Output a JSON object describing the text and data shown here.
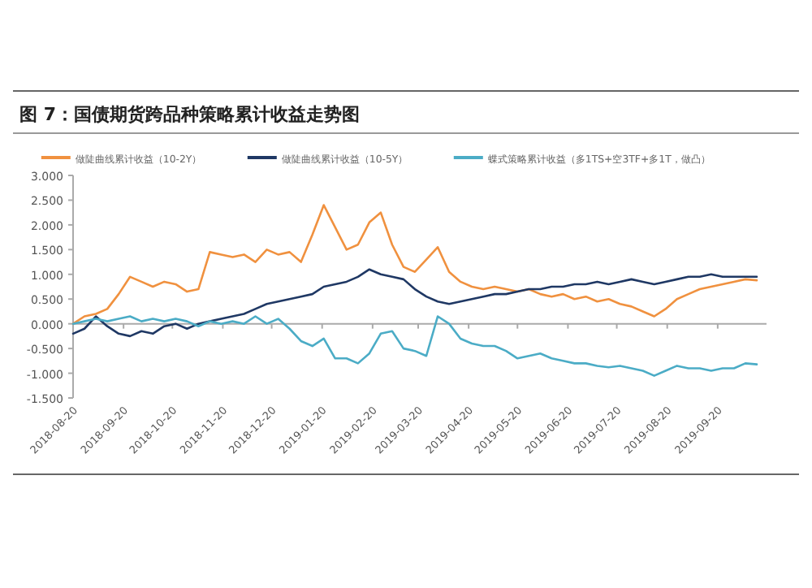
{
  "chart_data": {
    "type": "line",
    "title": "图 7：国债期货跨品种策略累计收益走势图",
    "x": [
      "2018-08-20",
      "2018-08-27",
      "2018-09-03",
      "2018-09-10",
      "2018-09-17",
      "2018-09-24",
      "2018-10-01",
      "2018-10-08",
      "2018-10-15",
      "2018-10-22",
      "2018-10-29",
      "2018-11-05",
      "2018-11-12",
      "2018-11-19",
      "2018-11-26",
      "2018-12-03",
      "2018-12-10",
      "2018-12-17",
      "2018-12-24",
      "2018-12-31",
      "2019-01-07",
      "2019-01-14",
      "2019-01-21",
      "2019-01-28",
      "2019-02-04",
      "2019-02-11",
      "2019-02-18",
      "2019-02-25",
      "2019-03-04",
      "2019-03-11",
      "2019-03-18",
      "2019-03-25",
      "2019-04-01",
      "2019-04-08",
      "2019-04-15",
      "2019-04-22",
      "2019-04-29",
      "2019-05-06",
      "2019-05-13",
      "2019-05-20",
      "2019-05-27",
      "2019-06-03",
      "2019-06-10",
      "2019-06-17",
      "2019-06-24",
      "2019-07-01",
      "2019-07-08",
      "2019-07-15",
      "2019-07-22",
      "2019-07-29",
      "2019-08-05",
      "2019-08-12",
      "2019-08-19",
      "2019-08-26",
      "2019-09-02",
      "2019-09-09",
      "2019-09-16",
      "2019-09-23",
      "2019-09-30",
      "2019-10-07",
      "2019-10-14"
    ],
    "series": [
      {
        "name": "做陡曲线累计收益（10-2Y）",
        "color": "#f0913f",
        "values": [
          0.0,
          0.15,
          0.2,
          0.3,
          0.6,
          0.95,
          0.85,
          0.75,
          0.85,
          0.8,
          0.65,
          0.7,
          1.45,
          1.4,
          1.35,
          1.4,
          1.25,
          1.5,
          1.4,
          1.45,
          1.25,
          1.8,
          2.4,
          1.95,
          1.5,
          1.6,
          2.05,
          2.25,
          1.6,
          1.15,
          1.05,
          1.3,
          1.55,
          1.05,
          0.85,
          0.75,
          0.7,
          0.75,
          0.7,
          0.65,
          0.7,
          0.6,
          0.55,
          0.6,
          0.5,
          0.55,
          0.45,
          0.5,
          0.4,
          0.35,
          0.25,
          0.15,
          0.3,
          0.5,
          0.6,
          0.7,
          0.75,
          0.8,
          0.85,
          0.9,
          0.88
        ]
      },
      {
        "name": "做陡曲线累计收益（10-5Y）",
        "color": "#1f3864",
        "values": [
          -0.2,
          -0.1,
          0.15,
          -0.05,
          -0.2,
          -0.25,
          -0.15,
          -0.2,
          -0.05,
          0.0,
          -0.1,
          0.0,
          0.05,
          0.1,
          0.15,
          0.2,
          0.3,
          0.4,
          0.45,
          0.5,
          0.55,
          0.6,
          0.75,
          0.8,
          0.85,
          0.95,
          1.1,
          1.0,
          0.95,
          0.9,
          0.7,
          0.55,
          0.45,
          0.4,
          0.45,
          0.5,
          0.55,
          0.6,
          0.6,
          0.65,
          0.7,
          0.7,
          0.75,
          0.75,
          0.8,
          0.8,
          0.85,
          0.8,
          0.85,
          0.9,
          0.85,
          0.8,
          0.85,
          0.9,
          0.95,
          0.95,
          1.0,
          0.95,
          0.95,
          0.95,
          0.95
        ]
      },
      {
        "name": "蝶式策略累计收益（多1TS+空3TF+多1T，做凸）",
        "color": "#4bacc6",
        "values": [
          0.0,
          0.05,
          0.1,
          0.05,
          0.1,
          0.15,
          0.05,
          0.1,
          0.05,
          0.1,
          0.05,
          -0.05,
          0.05,
          0.0,
          0.05,
          0.0,
          0.15,
          0.0,
          0.1,
          -0.1,
          -0.35,
          -0.45,
          -0.3,
          -0.7,
          -0.7,
          -0.8,
          -0.6,
          -0.2,
          -0.15,
          -0.5,
          -0.55,
          -0.65,
          0.15,
          0.0,
          -0.3,
          -0.4,
          -0.45,
          -0.45,
          -0.55,
          -0.7,
          -0.65,
          -0.6,
          -0.7,
          -0.75,
          -0.8,
          -0.8,
          -0.85,
          -0.88,
          -0.85,
          -0.9,
          -0.95,
          -1.05,
          -0.95,
          -0.85,
          -0.9,
          -0.9,
          -0.95,
          -0.9,
          -0.9,
          -0.8,
          -0.82
        ]
      }
    ],
    "xlim": [
      "2018-08-20",
      "2019-10-20"
    ],
    "xticks": [
      "2018-08-20",
      "2018-09-20",
      "2018-10-20",
      "2018-11-20",
      "2018-12-20",
      "2019-01-20",
      "2019-02-20",
      "2019-03-20",
      "2019-04-20",
      "2019-05-20",
      "2019-06-20",
      "2019-07-20",
      "2019-08-20",
      "2019-09-20"
    ],
    "ylim": [
      -1.5,
      3.0
    ],
    "yticks": [
      {
        "value": -1.5,
        "label": "-1.500"
      },
      {
        "value": -1.0,
        "label": "-1.000"
      },
      {
        "value": -0.5,
        "label": "-0.500"
      },
      {
        "value": 0,
        "label": "0.000"
      },
      {
        "value": 0.5,
        "label": "0.500"
      },
      {
        "value": 1.0,
        "label": "1.000"
      },
      {
        "value": 1.5,
        "label": "1.500"
      },
      {
        "value": 2.0,
        "label": "2.000"
      },
      {
        "value": 2.5,
        "label": "2.500"
      },
      {
        "value": 3.0,
        "label": "3.000"
      }
    ],
    "legend": "top",
    "line_style": "solid",
    "marker": "none"
  }
}
